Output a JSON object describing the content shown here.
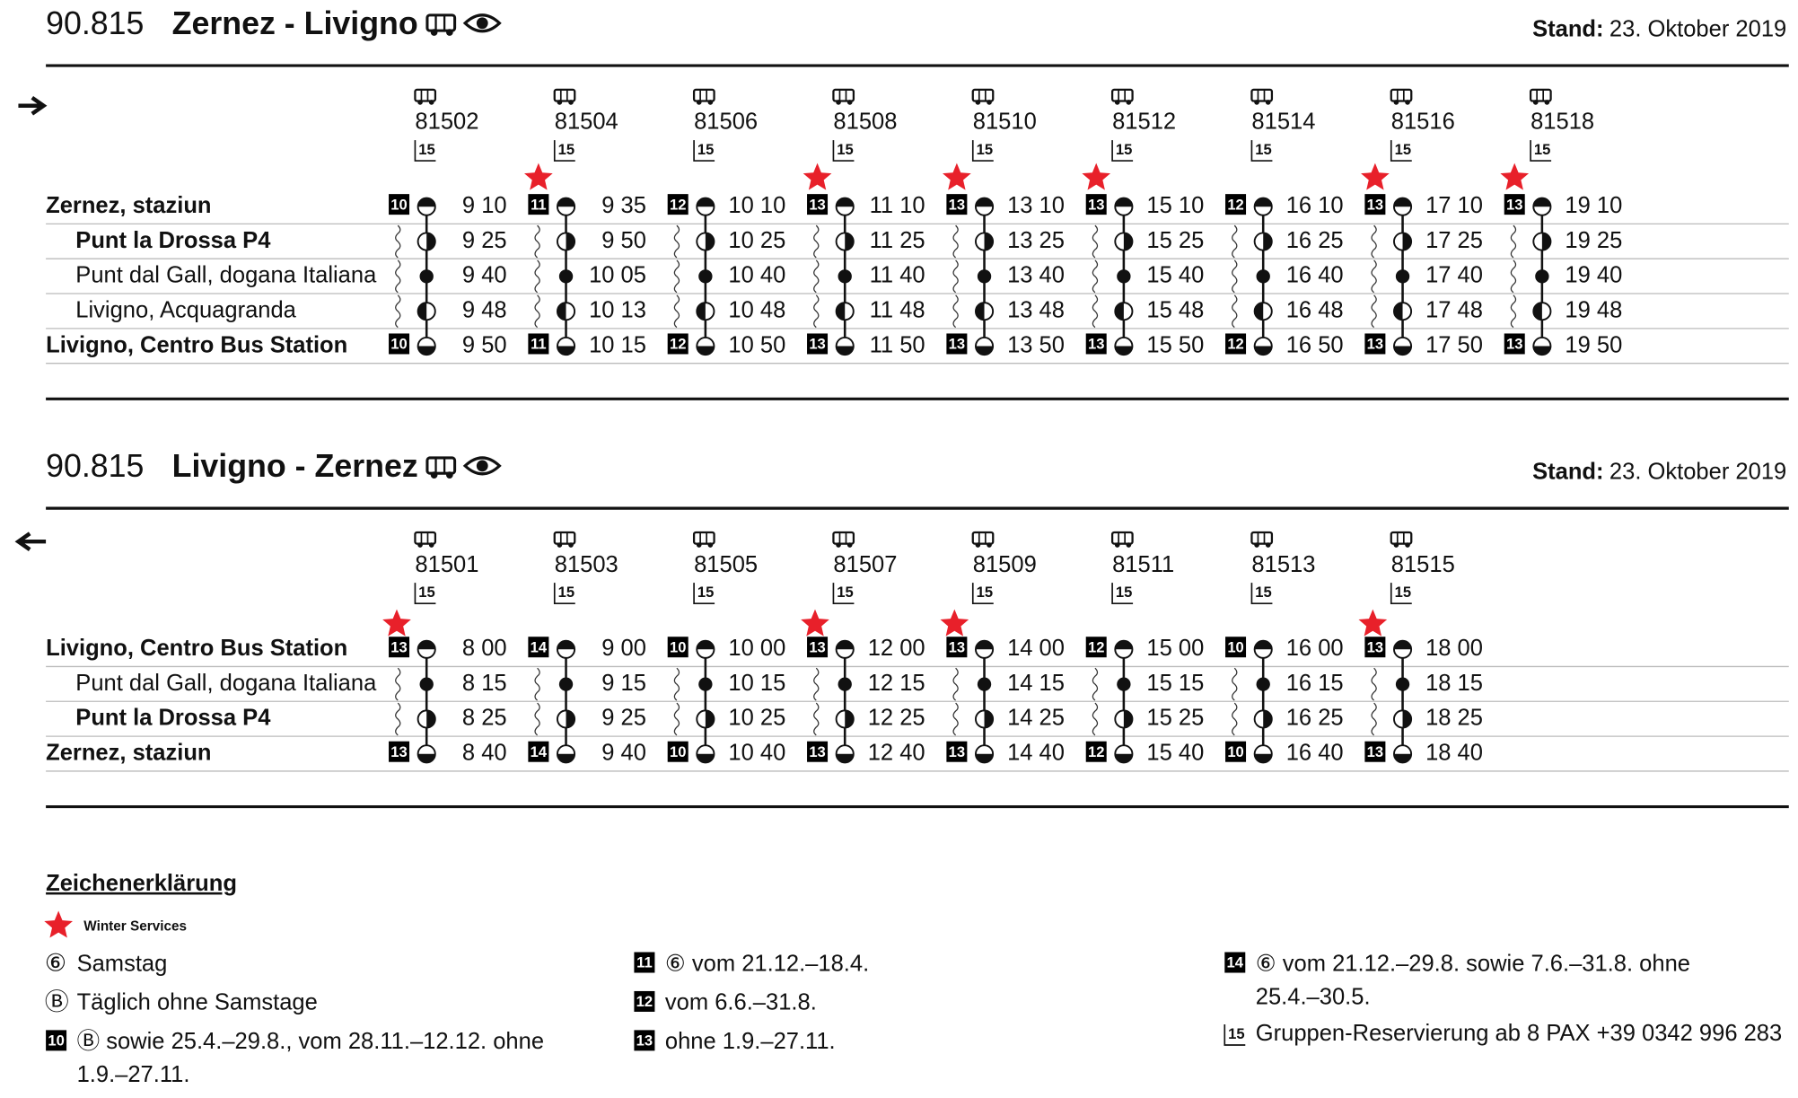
{
  "sections": [
    {
      "line": "90.815",
      "title": "Zernez - Livigno",
      "stand_label": "Stand:",
      "stand_date": "23. Oktober 2019",
      "direction": "right",
      "stops": [
        {
          "name": "Zernez, staziun",
          "bold": true
        },
        {
          "name": "Punt la Drossa P4",
          "bold": true,
          "marker": "half-right"
        },
        {
          "name": "Punt dal Gall, dogana Italiana",
          "bold": false,
          "marker": "full"
        },
        {
          "name": "Livigno, Acquagranda",
          "bold": false,
          "marker": "half-left"
        },
        {
          "name": "Livigno, Centro Bus Station",
          "bold": true
        }
      ],
      "trips": [
        {
          "number": "81502",
          "reservation": "15",
          "note": "10",
          "winter": false,
          "times": [
            "9 10",
            "9 25",
            "9 40",
            "9 48",
            "9 50"
          ]
        },
        {
          "number": "81504",
          "reservation": "15",
          "note": "11",
          "winter": true,
          "times": [
            "9 35",
            "9 50",
            "10 05",
            "10 13",
            "10 15"
          ]
        },
        {
          "number": "81506",
          "reservation": "15",
          "note": "12",
          "winter": false,
          "times": [
            "10 10",
            "10 25",
            "10 40",
            "10 48",
            "10 50"
          ]
        },
        {
          "number": "81508",
          "reservation": "15",
          "note": "13",
          "winter": true,
          "times": [
            "11 10",
            "11 25",
            "11 40",
            "11 48",
            "11 50"
          ]
        },
        {
          "number": "81510",
          "reservation": "15",
          "note": "13",
          "winter": true,
          "times": [
            "13 10",
            "13 25",
            "13 40",
            "13 48",
            "13 50"
          ]
        },
        {
          "number": "81512",
          "reservation": "15",
          "note": "13",
          "winter": true,
          "times": [
            "15 10",
            "15 25",
            "15 40",
            "15 48",
            "15 50"
          ]
        },
        {
          "number": "81514",
          "reservation": "15",
          "note": "12",
          "winter": false,
          "times": [
            "16 10",
            "16 25",
            "16 40",
            "16 48",
            "16 50"
          ]
        },
        {
          "number": "81516",
          "reservation": "15",
          "note": "13",
          "winter": true,
          "times": [
            "17 10",
            "17 25",
            "17 40",
            "17 48",
            "17 50"
          ]
        },
        {
          "number": "81518",
          "reservation": "15",
          "note": "13",
          "winter": true,
          "times": [
            "19 10",
            "19 25",
            "19 40",
            "19 48",
            "19 50"
          ]
        }
      ]
    },
    {
      "line": "90.815",
      "title": "Livigno - Zernez",
      "stand_label": "Stand:",
      "stand_date": "23. Oktober 2019",
      "direction": "left",
      "stops": [
        {
          "name": "Livigno, Centro Bus Station",
          "bold": true
        },
        {
          "name": "Punt dal Gall, dogana Italiana",
          "bold": false,
          "marker": "full"
        },
        {
          "name": "Punt la Drossa P4",
          "bold": true,
          "marker": "half-right"
        },
        {
          "name": "Zernez, staziun",
          "bold": true
        }
      ],
      "trips": [
        {
          "number": "81501",
          "reservation": "15",
          "note": "13",
          "winter": true,
          "times": [
            "8 00",
            "8 15",
            "8 25",
            "8 40"
          ]
        },
        {
          "number": "81503",
          "reservation": "15",
          "note": "14",
          "winter": false,
          "times": [
            "9 00",
            "9 15",
            "9 25",
            "9 40"
          ]
        },
        {
          "number": "81505",
          "reservation": "15",
          "note": "10",
          "winter": false,
          "times": [
            "10 00",
            "10 15",
            "10 25",
            "10 40"
          ]
        },
        {
          "number": "81507",
          "reservation": "15",
          "note": "13",
          "winter": true,
          "times": [
            "12 00",
            "12 15",
            "12 25",
            "12 40"
          ]
        },
        {
          "number": "81509",
          "reservation": "15",
          "note": "13",
          "winter": true,
          "times": [
            "14 00",
            "14 15",
            "14 25",
            "14 40"
          ]
        },
        {
          "number": "81511",
          "reservation": "15",
          "note": "12",
          "winter": false,
          "times": [
            "15 00",
            "15 15",
            "15 25",
            "15 40"
          ]
        },
        {
          "number": "81513",
          "reservation": "15",
          "note": "10",
          "winter": false,
          "times": [
            "16 00",
            "16 15",
            "16 25",
            "16 40"
          ]
        },
        {
          "number": "81515",
          "reservation": "15",
          "note": "13",
          "winter": true,
          "times": [
            "18 00",
            "18 15",
            "18 25",
            "18 40"
          ]
        }
      ]
    }
  ],
  "legend": {
    "title": "Zeichenerklärung",
    "items": [
      {
        "style": "star",
        "lines": [
          "Winter Services"
        ]
      },
      {
        "style": "plain",
        "symbol": "⑥",
        "lines": [
          "Samstag"
        ]
      },
      {
        "style": "plain",
        "symbol": "Ⓑ",
        "lines": [
          "Täglich ohne Samstage"
        ]
      },
      {
        "style": "badge",
        "symbol": "10",
        "lines": [
          "Ⓑ sowie 25.4.–29.8., vom 28.11.–12.12. ohne",
          "1.9.–27.11."
        ]
      },
      {
        "style": "badge",
        "symbol": "11",
        "lines": [
          "⑥ vom 21.12.–18.4."
        ]
      },
      {
        "style": "badge",
        "symbol": "12",
        "lines": [
          "vom 6.6.–31.8."
        ]
      },
      {
        "style": "badge",
        "symbol": "13",
        "lines": [
          "ohne 1.9.–27.11."
        ]
      },
      {
        "style": "badge",
        "symbol": "14",
        "lines": [
          "⑥ vom 21.12.–29.8. sowie 7.6.–31.8. ohne",
          "25.4.–30.5."
        ]
      },
      {
        "style": "bracket",
        "symbol": "15",
        "lines": [
          "Gruppen-Reservierung ab 8 PAX +39 0342 996 283"
        ]
      }
    ]
  }
}
